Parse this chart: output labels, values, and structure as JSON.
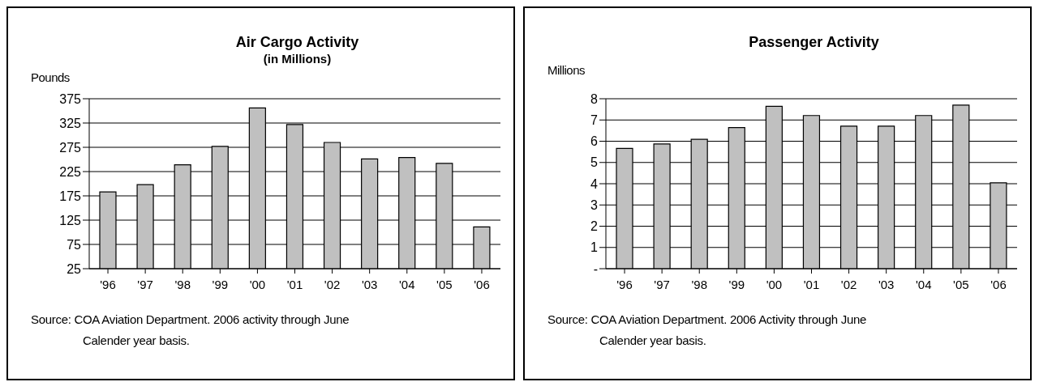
{
  "chart_data": [
    {
      "type": "bar",
      "title": "Air Cargo Activity",
      "subtitle": "(in Millions)",
      "ylabel": "Pounds",
      "categories": [
        "'96",
        "'97",
        "'98",
        "'99",
        "'00",
        "'01",
        "'02",
        "'03",
        "'04",
        "'05",
        "'06"
      ],
      "values": [
        183,
        198,
        239,
        277,
        356,
        322,
        285,
        251,
        254,
        242,
        111
      ],
      "color": "#c0c0c0",
      "ylim": [
        25,
        375
      ],
      "yticks": [
        25,
        75,
        125,
        175,
        225,
        275,
        325,
        375
      ],
      "grid": "y",
      "annotations": [
        "Source:  COA Aviation Department.  2006 activity through June",
        "Calender year basis."
      ]
    },
    {
      "type": "bar",
      "title": "Passenger Activity",
      "ylabel": "Millions",
      "categories": [
        "'96",
        "'97",
        "'98",
        "'99",
        "'00",
        "'01",
        "'02",
        "'03",
        "'04",
        "'05",
        "'06"
      ],
      "values": [
        5.66,
        5.87,
        6.09,
        6.64,
        7.64,
        7.21,
        6.71,
        6.71,
        7.21,
        7.7,
        4.04
      ],
      "color": "#c0c0c0",
      "ylim": [
        0,
        8
      ],
      "yticks": [
        {
          "value": 0,
          "label": "-"
        },
        1,
        2,
        3,
        4,
        5,
        6,
        7,
        8
      ],
      "grid": "y",
      "annotations": [
        "Source:  COA Aviation Department.   2006 Activity through June",
        "Calender year basis."
      ]
    }
  ]
}
